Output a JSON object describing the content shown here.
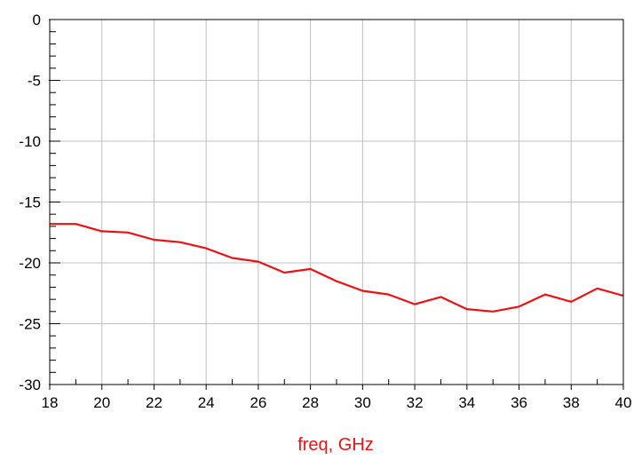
{
  "chart_data": {
    "type": "line",
    "title": "",
    "xlabel": "freq, GHz",
    "ylabel": "",
    "xlim": [
      18,
      40
    ],
    "ylim": [
      -30,
      0
    ],
    "grid": true,
    "x_ticks": [
      18,
      20,
      22,
      24,
      26,
      28,
      30,
      32,
      34,
      36,
      38,
      40
    ],
    "y_ticks": [
      0,
      -5,
      -10,
      -15,
      -20,
      -25,
      -30
    ],
    "x": [
      18,
      19,
      20,
      21,
      22,
      23,
      24,
      25,
      26,
      27,
      28,
      29,
      30,
      31,
      32,
      33,
      34,
      35,
      36,
      37,
      38,
      39,
      40
    ],
    "series": [
      {
        "color": "#ee1111",
        "values": [
          -16.8,
          -16.8,
          -17.4,
          -17.5,
          -18.1,
          -18.3,
          -18.8,
          -19.6,
          -19.9,
          -20.8,
          -20.5,
          -21.5,
          -22.3,
          -22.6,
          -23.4,
          -22.8,
          -23.8,
          -24.0,
          -23.6,
          -22.6,
          -23.2,
          -22.1,
          -22.7
        ]
      }
    ],
    "colors": {
      "xlabel": "#ee1111",
      "grid": "#c0c0c0",
      "axis": "#000000"
    }
  }
}
